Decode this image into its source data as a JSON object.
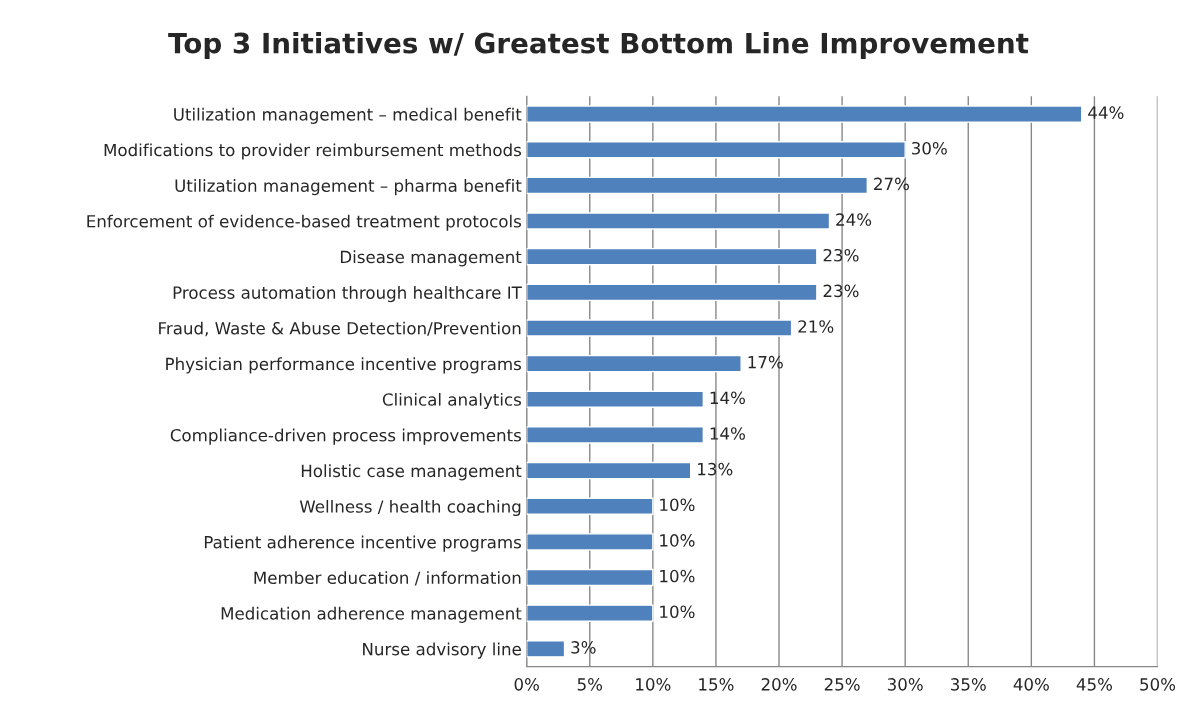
{
  "chart_data": {
    "type": "bar",
    "orientation": "horizontal",
    "title": "Top 3 Initiatives w/ Greatest Bottom Line Improvement",
    "categories": [
      "Utilization management – medical benefit",
      "Modifications to provider reimbursement methods",
      "Utilization management – pharma benefit",
      "Enforcement of evidence-based treatment protocols",
      "Disease management",
      "Process automation through healthcare IT",
      "Fraud, Waste & Abuse Detection/Prevention",
      "Physician performance incentive programs",
      "Clinical analytics",
      "Compliance-driven process improvements",
      "Holistic case management",
      "Wellness / health coaching",
      "Patient adherence incentive programs",
      "Member education / information",
      "Medication adherence management",
      "Nurse advisory line"
    ],
    "values": [
      44,
      30,
      27,
      24,
      23,
      23,
      21,
      17,
      14,
      14,
      13,
      10,
      10,
      10,
      10,
      3
    ],
    "value_labels": [
      "44%",
      "30%",
      "27%",
      "24%",
      "23%",
      "23%",
      "21%",
      "17%",
      "14%",
      "14%",
      "13%",
      "10%",
      "10%",
      "10%",
      "10%",
      "3%"
    ],
    "color": "#4f81bd",
    "xlim": [
      0,
      50
    ],
    "xticks": [
      {
        "value": 0,
        "label": "0%"
      },
      {
        "value": 5,
        "label": "5%"
      },
      {
        "value": 10,
        "label": "10%"
      },
      {
        "value": 15,
        "label": "15%"
      },
      {
        "value": 20,
        "label": "20%"
      },
      {
        "value": 25,
        "label": "25%"
      },
      {
        "value": 30,
        "label": "30%"
      },
      {
        "value": 35,
        "label": "35%"
      },
      {
        "value": 40,
        "label": "40%"
      },
      {
        "value": 45,
        "label": "45%"
      },
      {
        "value": 50,
        "label": "50%"
      }
    ],
    "grid": "x"
  }
}
